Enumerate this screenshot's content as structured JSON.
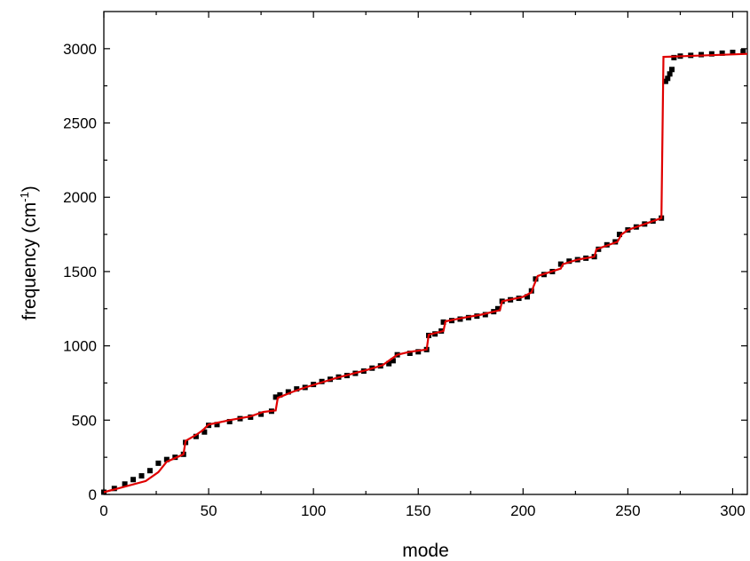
{
  "chart_data": {
    "type": "scatter",
    "xlabel": "mode",
    "ylabel_main": "frequency (cm",
    "ylabel_sup": "-1",
    "ylabel_end": ")",
    "xlim": [
      0,
      307
    ],
    "ylim": [
      0,
      3250
    ],
    "xticks": [
      0,
      50,
      100,
      150,
      200,
      250,
      300
    ],
    "yticks": [
      0,
      500,
      1000,
      1500,
      2000,
      2500,
      3000
    ],
    "grid": false,
    "legend": "none",
    "colors": {
      "points": "#000000",
      "fit": "#e00000"
    },
    "series": [
      {
        "kind": "points",
        "x": [
          0,
          5,
          10,
          14,
          18,
          22,
          26,
          30,
          34,
          38,
          39,
          44,
          48,
          50,
          54,
          60,
          65,
          70,
          75,
          80,
          82,
          84,
          88,
          92,
          96,
          100,
          104,
          108,
          112,
          116,
          120,
          124,
          128,
          132,
          136,
          138,
          140,
          146,
          150,
          154,
          155,
          158,
          161,
          162,
          166,
          170,
          174,
          178,
          182,
          186,
          188,
          190,
          194,
          198,
          202,
          204,
          206,
          210,
          214,
          218,
          222,
          226,
          230,
          234,
          236,
          240,
          244,
          246,
          250,
          254,
          258,
          262,
          266,
          268,
          269,
          270,
          271,
          272,
          275,
          280,
          285,
          290,
          295,
          300,
          305
        ],
        "y": [
          15,
          40,
          70,
          100,
          125,
          160,
          210,
          235,
          250,
          270,
          350,
          390,
          420,
          465,
          470,
          490,
          510,
          520,
          540,
          560,
          655,
          670,
          690,
          710,
          720,
          740,
          760,
          775,
          790,
          800,
          815,
          830,
          850,
          865,
          880,
          900,
          940,
          950,
          960,
          975,
          1070,
          1080,
          1100,
          1160,
          1170,
          1180,
          1190,
          1200,
          1210,
          1230,
          1250,
          1300,
          1310,
          1320,
          1330,
          1370,
          1450,
          1480,
          1500,
          1550,
          1570,
          1580,
          1590,
          1600,
          1650,
          1680,
          1700,
          1750,
          1780,
          1800,
          1820,
          1840,
          1860,
          2780,
          2800,
          2830,
          2860,
          2940,
          2950,
          2955,
          2960,
          2965,
          2970,
          2975,
          2980
        ]
      },
      {
        "kind": "fit-step",
        "x": [
          0,
          20,
          26,
          30,
          38,
          39,
          44,
          47,
          50,
          60,
          70,
          76,
          82,
          83,
          90,
          96,
          103,
          110,
          118,
          126,
          133,
          140,
          146,
          154,
          155,
          162,
          163,
          172,
          180,
          189,
          190,
          200,
          204,
          205,
          207,
          218,
          219,
          226,
          234,
          235,
          245,
          247,
          250,
          266,
          267,
          307
        ],
        "y": [
          15,
          90,
          150,
          220,
          270,
          360,
          400,
          430,
          470,
          500,
          525,
          555,
          565,
          650,
          690,
          720,
          750,
          780,
          810,
          840,
          870,
          940,
          960,
          975,
          1075,
          1100,
          1165,
          1190,
          1210,
          1240,
          1300,
          1330,
          1360,
          1400,
          1470,
          1520,
          1550,
          1580,
          1600,
          1650,
          1700,
          1750,
          1780,
          1860,
          2945,
          2965
        ]
      }
    ]
  }
}
